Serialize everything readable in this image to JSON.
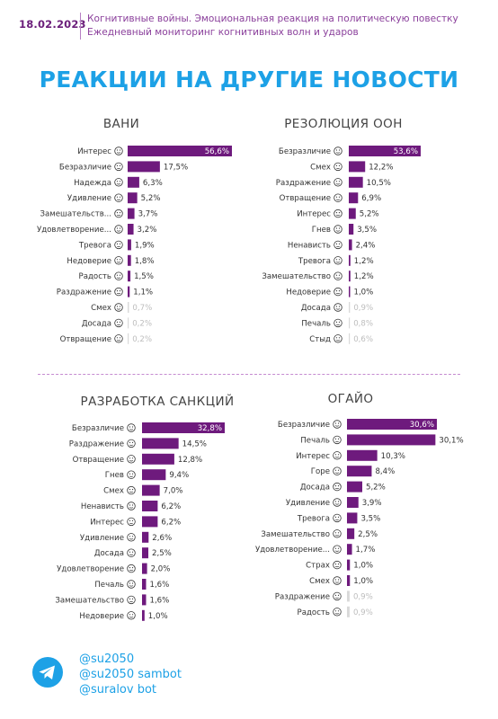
{
  "header": {
    "date": "18.02.2023",
    "subtitle_line1": "Когнитивные войны. Эмоциональная реакция на политическую повестку",
    "subtitle_line2": "Ежедневный мониторинг когнитивных волн и ударов"
  },
  "headline": "РЕАКЦИИ НА ДРУГИЕ НОВОСТИ",
  "colors": {
    "bar": "#6e1a7d",
    "faded": "#bdbdbd",
    "accent": "#1da1e6",
    "header": "#6b1e7a"
  },
  "footer": {
    "icon": "telegram-icon",
    "handles": [
      "@su2050",
      "@su2050 sambot",
      "@suralov bot"
    ]
  },
  "chart_data": [
    {
      "type": "bar",
      "title": "ВАНИ",
      "categories": [
        "Интерес",
        "Безразличие",
        "Надежда",
        "Удивление",
        "Замешательств...",
        "Удовлетворение...",
        "Тревога",
        "Недоверие",
        "Радость",
        "Раздражение",
        "Смех",
        "Досада",
        "Отвращение"
      ],
      "value_labels": [
        "56,6%",
        "17,5%",
        "6,3%",
        "5,2%",
        "3,7%",
        "3,2%",
        "1,9%",
        "1,8%",
        "1,5%",
        "1,1%",
        "0,7%",
        "0,2%",
        "0,2%"
      ],
      "values": [
        56.6,
        17.5,
        6.3,
        5.2,
        3.7,
        3.2,
        1.9,
        1.8,
        1.5,
        1.1,
        0.7,
        0.2,
        0.2
      ],
      "faded": [
        false,
        false,
        false,
        false,
        false,
        false,
        false,
        false,
        false,
        false,
        true,
        true,
        true
      ],
      "icons": [
        "interest-emoji-icon",
        "indifference-emoji-icon",
        "hope-emoji-icon",
        "surprise-emoji-icon",
        "confusion-emoji-icon",
        "satisfaction-emoji-icon",
        "anxiety-emoji-icon",
        "distrust-emoji-icon",
        "joy-emoji-icon",
        "irritation-emoji-icon",
        "laughter-emoji-icon",
        "annoyance-emoji-icon",
        "disgust-emoji-icon"
      ]
    },
    {
      "type": "bar",
      "title": "РЕЗОЛЮЦИЯ ООН",
      "categories": [
        "Безразличие",
        "Смех",
        "Раздражение",
        "Отвращение",
        "Интерес",
        "Гнев",
        "Ненависть",
        "Тревога",
        "Замешательство",
        "Недоверие",
        "Досада",
        "Печаль",
        "Стыд"
      ],
      "value_labels": [
        "53,6%",
        "12,2%",
        "10,5%",
        "6,9%",
        "5,2%",
        "3,5%",
        "2,4%",
        "1,2%",
        "1,2%",
        "1,0%",
        "0,9%",
        "0,8%",
        "0,6%"
      ],
      "values": [
        53.6,
        12.2,
        10.5,
        6.9,
        5.2,
        3.5,
        2.4,
        1.2,
        1.2,
        1.0,
        0.9,
        0.8,
        0.6
      ],
      "faded": [
        false,
        false,
        false,
        false,
        false,
        false,
        false,
        false,
        false,
        false,
        true,
        true,
        true
      ],
      "icons": [
        "indifference-emoji-icon",
        "laughter-emoji-icon",
        "irritation-emoji-icon",
        "disgust-emoji-icon",
        "interest-emoji-icon",
        "anger-emoji-icon",
        "hatred-emoji-icon",
        "anxiety-emoji-icon",
        "confusion-emoji-icon",
        "distrust-emoji-icon",
        "annoyance-emoji-icon",
        "sadness-emoji-icon",
        "shame-emoji-icon"
      ]
    },
    {
      "type": "bar",
      "title": "РАЗРАБОТКА САНКЦИЙ",
      "categories": [
        "Безразличие",
        "Раздражение",
        "Отвращение",
        "Гнев",
        "Смех",
        "Ненависть",
        "Интерес",
        "Удивление",
        "Досада",
        "Удовлетворение",
        "Печаль",
        "Замешательство",
        "Недоверие"
      ],
      "value_labels": [
        "32,8%",
        "14,5%",
        "12,8%",
        "9,4%",
        "7,0%",
        "6,2%",
        "6,2%",
        "2,6%",
        "2,5%",
        "2,0%",
        "1,6%",
        "1,6%",
        "1,0%"
      ],
      "values": [
        32.8,
        14.5,
        12.8,
        9.4,
        7.0,
        6.2,
        6.2,
        2.6,
        2.5,
        2.0,
        1.6,
        1.6,
        1.0
      ],
      "faded": [
        false,
        false,
        false,
        false,
        false,
        false,
        false,
        false,
        false,
        false,
        false,
        false,
        false
      ],
      "icons": [
        "indifference-emoji-icon",
        "irritation-emoji-icon",
        "disgust-emoji-icon",
        "anger-emoji-icon",
        "laughter-emoji-icon",
        "hatred-emoji-icon",
        "interest-emoji-icon",
        "surprise-emoji-icon",
        "annoyance-emoji-icon",
        "satisfaction-emoji-icon",
        "sadness-emoji-icon",
        "confusion-emoji-icon",
        "distrust-emoji-icon"
      ]
    },
    {
      "type": "bar",
      "title": "ОГАЙО",
      "categories": [
        "Безразличие",
        "Печаль",
        "Интерес",
        "Горе",
        "Досада",
        "Удивление",
        "Тревога",
        "Замешательство",
        "Удовлетворение...",
        "Страх",
        "Смех",
        "Раздражение",
        "Радость"
      ],
      "value_labels": [
        "30,6%",
        "30,1%",
        "10,3%",
        "8,4%",
        "5,2%",
        "3,9%",
        "3,5%",
        "2,5%",
        "1,7%",
        "1,0%",
        "1,0%",
        "0,9%",
        "0,9%"
      ],
      "values": [
        30.6,
        30.1,
        10.3,
        8.4,
        5.2,
        3.9,
        3.5,
        2.5,
        1.7,
        1.0,
        1.0,
        0.9,
        0.9
      ],
      "faded": [
        false,
        false,
        false,
        false,
        false,
        false,
        false,
        false,
        false,
        false,
        false,
        true,
        true
      ],
      "icons": [
        "indifference-emoji-icon",
        "sadness-emoji-icon",
        "interest-emoji-icon",
        "grief-emoji-icon",
        "annoyance-emoji-icon",
        "surprise-emoji-icon",
        "anxiety-emoji-icon",
        "confusion-emoji-icon",
        "satisfaction-emoji-icon",
        "fear-emoji-icon",
        "laughter-emoji-icon",
        "irritation-emoji-icon",
        "joy-emoji-icon"
      ]
    }
  ]
}
